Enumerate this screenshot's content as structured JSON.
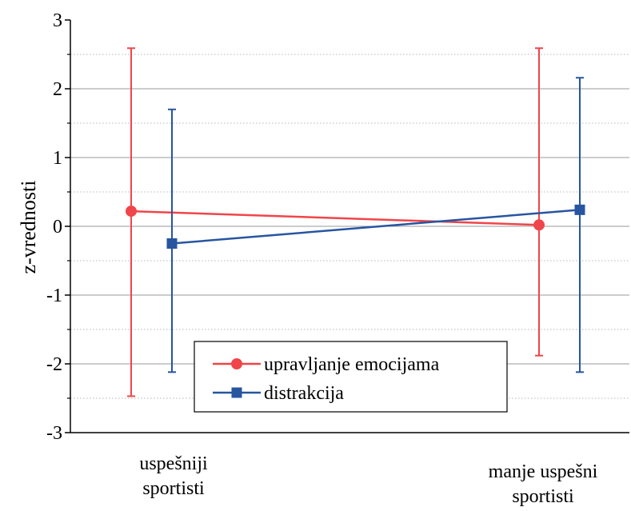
{
  "chart_data": {
    "type": "line",
    "ylabel": "z-vrednosti",
    "ylim": [
      -3,
      3
    ],
    "yticks": [
      "-3",
      "-2",
      "-1",
      "0",
      "1",
      "2",
      "3"
    ],
    "grid": {
      "major_y": true,
      "minor_y": true,
      "x": false
    },
    "categories": [
      [
        "uspešniji",
        "sportisti"
      ],
      [
        "manje uspešni",
        "sportisti"
      ]
    ],
    "series": [
      {
        "name": "upravljanje emocijama",
        "color": "#f0454a",
        "marker": "circle",
        "values": [
          0.22,
          0.02
        ],
        "err_low": [
          -2.47,
          -1.88
        ],
        "err_high": [
          2.59,
          2.59
        ]
      },
      {
        "name": "distrakcija",
        "color": "#2755a0",
        "marker": "square",
        "values": [
          -0.25,
          0.24
        ],
        "err_low": [
          -2.12,
          -2.12
        ],
        "err_high": [
          1.7,
          2.16
        ]
      }
    ],
    "legend": {
      "position": "bottom-center, inside plot"
    }
  }
}
